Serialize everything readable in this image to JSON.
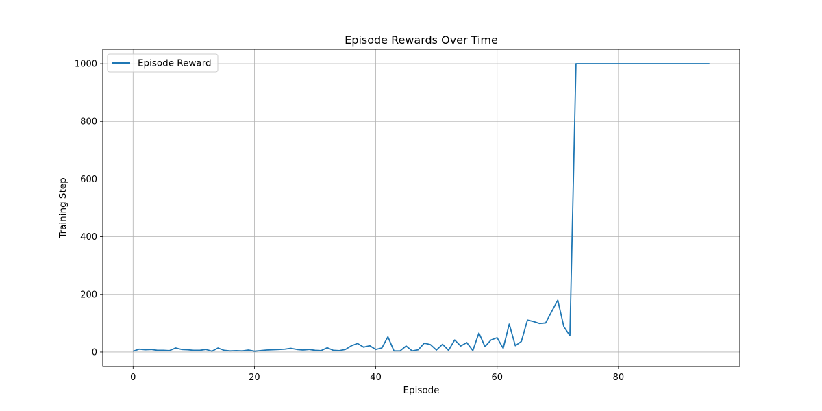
{
  "chart_data": {
    "type": "line",
    "title": "Episode Rewards Over Time",
    "xlabel": "Episode",
    "ylabel": "Training Step",
    "xlim": [
      -5,
      100
    ],
    "ylim": [
      -50,
      1050
    ],
    "xticks": [
      0,
      20,
      40,
      60,
      80
    ],
    "yticks": [
      0,
      200,
      400,
      600,
      800,
      1000
    ],
    "grid": true,
    "legend_position": "upper-left",
    "series": [
      {
        "name": "Episode Reward",
        "color": "#1f77b4",
        "x": [
          0,
          1,
          2,
          3,
          4,
          5,
          6,
          7,
          8,
          9,
          10,
          11,
          12,
          13,
          14,
          15,
          16,
          17,
          18,
          19,
          20,
          21,
          22,
          23,
          24,
          25,
          26,
          27,
          28,
          29,
          30,
          31,
          32,
          33,
          34,
          35,
          36,
          37,
          38,
          39,
          40,
          41,
          42,
          43,
          44,
          45,
          46,
          47,
          48,
          49,
          50,
          51,
          52,
          53,
          54,
          55,
          56,
          57,
          58,
          59,
          60,
          61,
          62,
          63,
          64,
          65,
          66,
          67,
          68,
          69,
          70,
          71,
          72,
          73,
          74,
          75,
          76,
          77,
          78,
          79,
          80,
          81,
          82,
          83,
          84,
          85,
          86,
          87,
          88,
          89,
          90,
          91,
          92,
          93,
          94,
          95
        ],
        "values": [
          3,
          10,
          8,
          9,
          6,
          6,
          5,
          14,
          9,
          8,
          6,
          6,
          9,
          3,
          14,
          6,
          4,
          5,
          4,
          7,
          3,
          5,
          7,
          8,
          9,
          10,
          13,
          9,
          7,
          9,
          6,
          5,
          15,
          6,
          5,
          9,
          22,
          30,
          17,
          22,
          9,
          14,
          53,
          4,
          4,
          21,
          4,
          8,
          31,
          26,
          7,
          27,
          6,
          42,
          21,
          33,
          5,
          66,
          19,
          42,
          50,
          13,
          97,
          22,
          37,
          111,
          106,
          99,
          101,
          141,
          180,
          88,
          57,
          1000,
          1000,
          1000,
          1000,
          1000,
          1000,
          1000,
          1000,
          1000,
          1000,
          1000,
          1000,
          1000,
          1000,
          1000,
          1000,
          1000,
          1000,
          1000,
          1000,
          1000,
          1000,
          1000
        ]
      }
    ]
  }
}
